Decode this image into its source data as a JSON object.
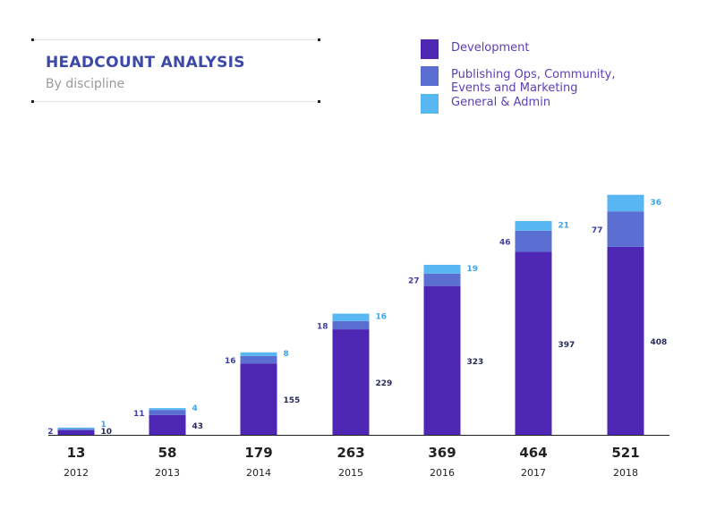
{
  "header": {
    "title": "HEADCOUNT ANALYSIS",
    "subtitle": "By discipline"
  },
  "legend": [
    {
      "label": "Development",
      "color": "#4d27b3"
    },
    {
      "label": "Publishing Ops, Community,\nEvents and Marketing",
      "color": "#5a6fd1"
    },
    {
      "label": "General & Admin",
      "color": "#58b6f1"
    }
  ],
  "colors": {
    "total_label": "#222222",
    "year_label": "#222222",
    "dev_label": "#2a2a5c",
    "pub_label": "#3f3fa0",
    "ga_label": "#3aa5e8",
    "axis": "#222222"
  },
  "chart_data": {
    "type": "bar",
    "stacked": true,
    "categories": [
      "2012",
      "2013",
      "2014",
      "2015",
      "2016",
      "2017",
      "2018"
    ],
    "totals": [
      "13",
      "58",
      "179",
      "263",
      "369",
      "464",
      "521"
    ],
    "series": [
      {
        "name": "Development",
        "values": [
          10,
          43,
          155,
          229,
          323,
          397,
          408
        ]
      },
      {
        "name": "Publishing Ops, Community, Events and Marketing",
        "values": [
          2,
          11,
          16,
          18,
          27,
          46,
          77
        ]
      },
      {
        "name": "General & Admin",
        "values": [
          1,
          4,
          8,
          16,
          19,
          21,
          36
        ]
      }
    ],
    "title": "HEADCOUNT ANALYSIS",
    "subtitle": "By discipline",
    "legend_position": "top-right",
    "grid": false
  }
}
